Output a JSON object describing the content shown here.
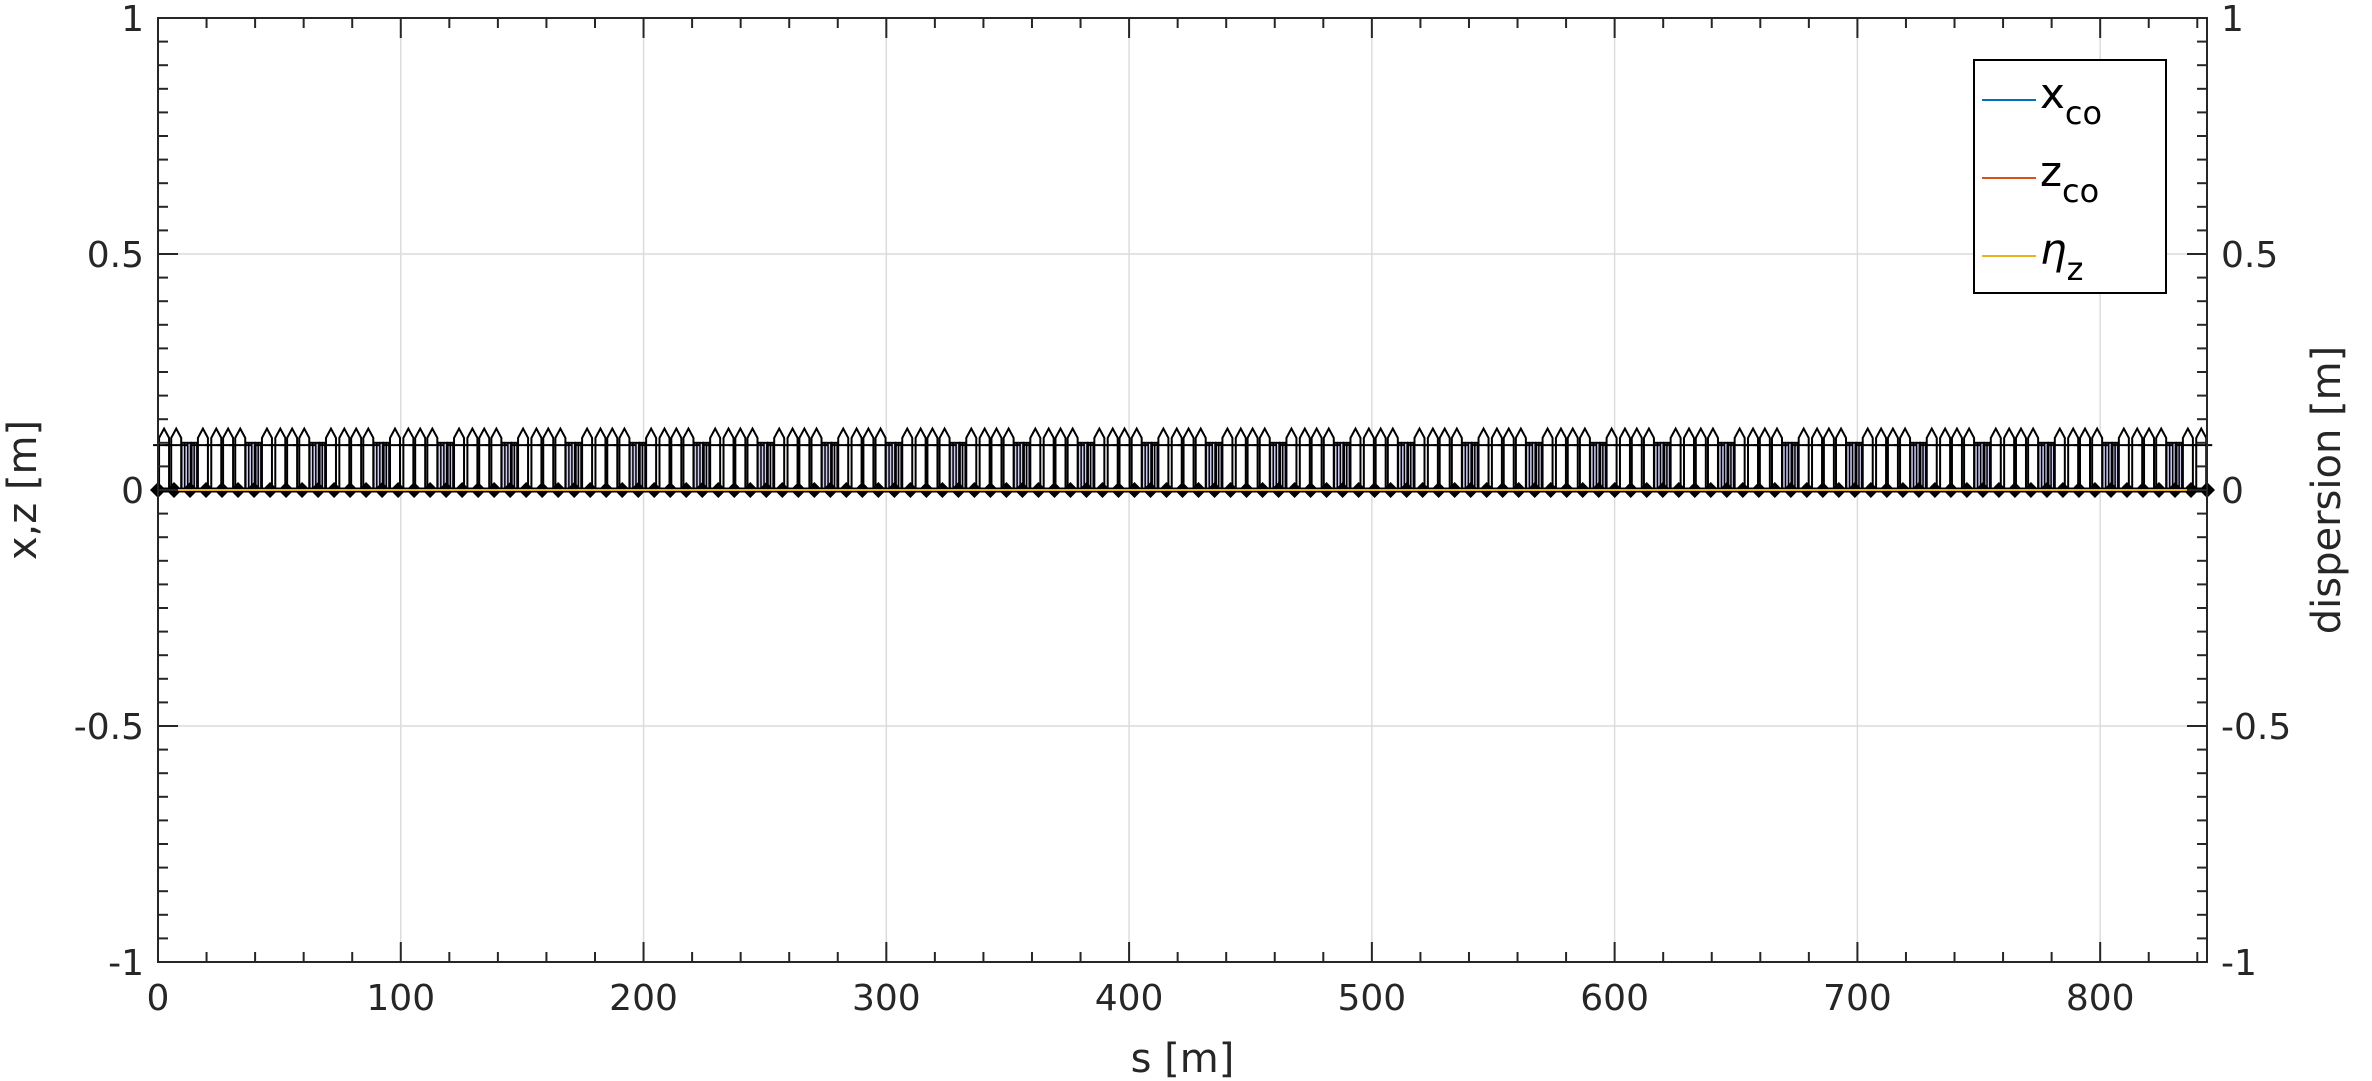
{
  "chart_data": {
    "type": "line",
    "xlabel": "s [m]",
    "ylabel_left": "x,z [m]",
    "ylabel_right": "dispersion [m]",
    "xlim": [
      0,
      844
    ],
    "ylim_left": [
      -1,
      1
    ],
    "ylim_right": [
      -1,
      1
    ],
    "x_ticks": [
      0,
      100,
      200,
      300,
      400,
      500,
      600,
      700,
      800
    ],
    "x_tick_labels": [
      "0",
      "100",
      "200",
      "300",
      "400",
      "500",
      "600",
      "700",
      "800"
    ],
    "y_ticks": [
      -1,
      -0.5,
      0,
      0.5,
      1
    ],
    "y_tick_labels_left": [
      "-1",
      "-0.5",
      "0",
      "0.5",
      "1"
    ],
    "y_tick_labels_right": [
      "-1",
      "-0.5",
      "0",
      "0.5",
      "1"
    ],
    "grid": true,
    "legend_position": "top-right",
    "legend": [
      {
        "base": "x",
        "sub": "co",
        "italic": false
      },
      {
        "base": "z",
        "sub": "co",
        "italic": false
      },
      {
        "base": "η",
        "sub": "z",
        "italic": true
      }
    ],
    "series": [
      {
        "name": "x_co",
        "x": [
          0,
          844
        ],
        "y": [
          0,
          0
        ],
        "color": "#0072BD"
      },
      {
        "name": "z_co",
        "x": [
          0,
          844
        ],
        "y": [
          0,
          0
        ],
        "color": "#D95319"
      },
      {
        "name": "η_z",
        "x": [
          0,
          844
        ],
        "y": [
          0,
          0
        ],
        "color": "#EDB120"
      }
    ],
    "lattice": {
      "cell_length": 26.375,
      "cell_count": 32,
      "quad_positions": [
        2.5,
        7.5,
        18.5,
        24.0
      ],
      "dipole_spans": [
        [
          8.5,
          13.5
        ],
        [
          13.8,
          18.2
        ]
      ],
      "dipole_height": 0.1,
      "quad_height": 0.13,
      "colors": {
        "element": "#000000",
        "dipole_fill": "#6a6ad8"
      }
    }
  }
}
